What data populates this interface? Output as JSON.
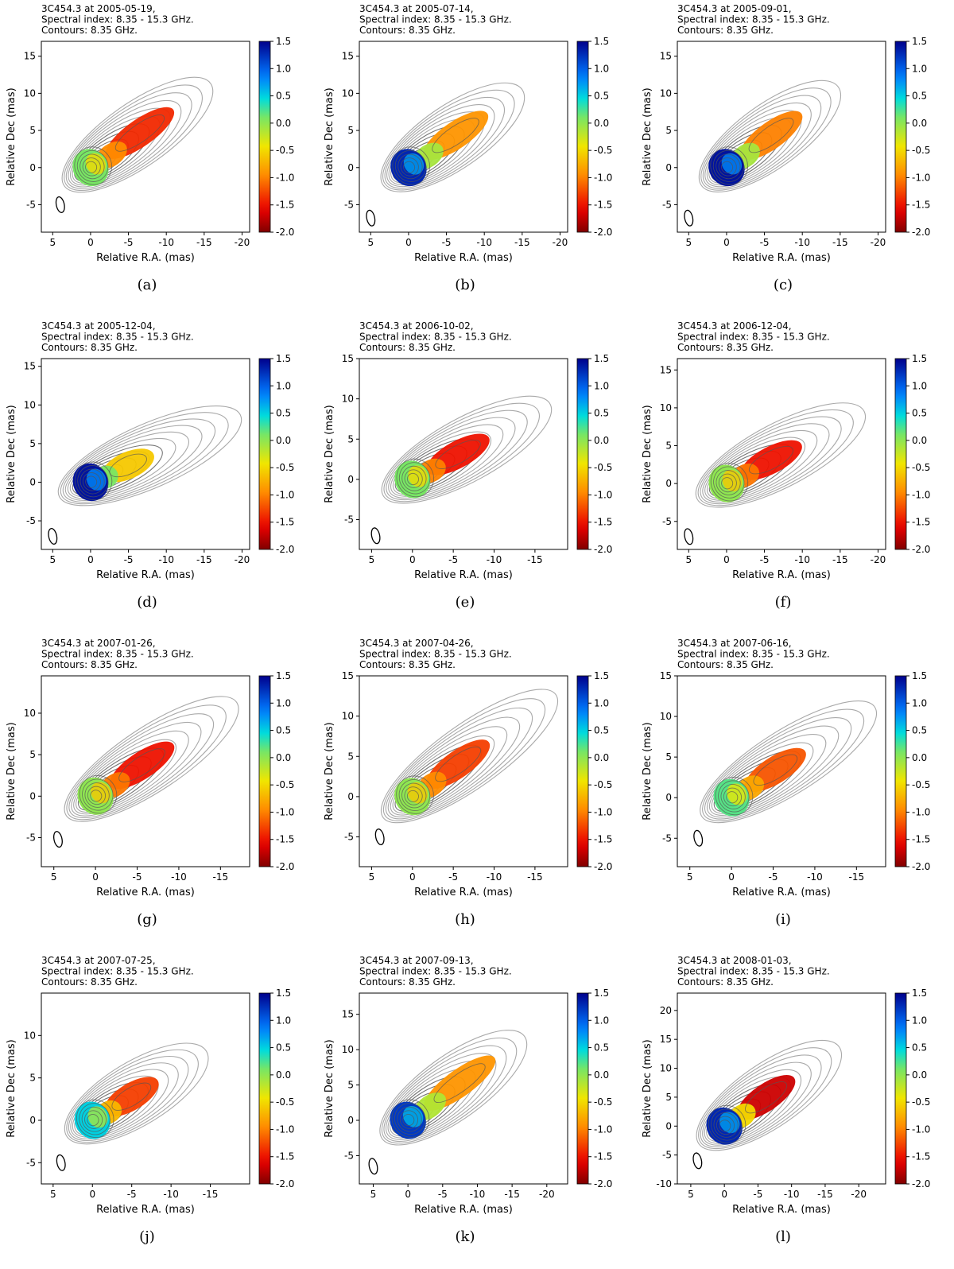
{
  "chart_data": [
    {
      "label": "(a)",
      "title": [
        "3C454.3 at 2005-05-19,",
        "Spectral index: 8.35 - 15.3 GHz.",
        "Contours: 8.35 GHz."
      ],
      "xlabel": "Relative R.A. (mas)",
      "ylabel": "Relative Dec (mas)",
      "xlim": [
        6.5,
        -21
      ],
      "ylim": [
        -8.7,
        17
      ],
      "xticks": [
        5,
        0,
        -5,
        -10,
        -15,
        -20
      ],
      "yticks": [
        -5,
        0,
        5,
        10,
        15
      ],
      "colorbar": {
        "ticks": [
          1.5,
          1.0,
          0.5,
          0.0,
          -0.5,
          -1.0,
          -1.5,
          -2.0
        ],
        "range": [
          -2.0,
          1.5
        ]
      },
      "core_index": 0.1,
      "jet_index": -1.4,
      "jet_end": [
        -10.5,
        7.5
      ],
      "contour_extent": [
        -15,
        10.5
      ],
      "beam": [
        4.0,
        -5.0
      ]
    },
    {
      "label": "(b)",
      "title": [
        "3C454.3 at 2005-07-14,",
        "Spectral index: 8.35 - 15.3 GHz.",
        "Contours: 8.35 GHz."
      ],
      "xlabel": "Relative R.A. (mas)",
      "ylabel": "Relative Dec (mas)",
      "xlim": [
        6.5,
        -21
      ],
      "ylim": [
        -8.7,
        17
      ],
      "xticks": [
        5,
        0,
        -5,
        -10,
        -15,
        -20
      ],
      "yticks": [
        -5,
        0,
        5,
        10,
        15
      ],
      "colorbar": {
        "ticks": [
          1.5,
          1.0,
          0.5,
          0.0,
          -0.5,
          -1.0,
          -1.5,
          -2.0
        ],
        "range": [
          -2.0,
          1.5
        ]
      },
      "core_index": 1.3,
      "jet_index": -0.9,
      "jet_end": [
        -10,
        7
      ],
      "contour_extent": [
        -14,
        12
      ],
      "beam": [
        5.0,
        -6.8
      ]
    },
    {
      "label": "(c)",
      "title": [
        "3C454.3 at 2005-09-01,",
        "Spectral index: 8.35 - 15.3 GHz.",
        "Contours: 8.35 GHz."
      ],
      "xlabel": "Relative R.A. (mas)",
      "ylabel": "Relative Dec (mas)",
      "xlim": [
        6.5,
        -21
      ],
      "ylim": [
        -8.7,
        17
      ],
      "xticks": [
        5,
        0,
        -5,
        -10,
        -15,
        -20
      ],
      "yticks": [
        -5,
        0,
        5,
        10,
        15
      ],
      "colorbar": {
        "ticks": [
          1.5,
          1.0,
          0.5,
          0.0,
          -0.5,
          -1.0,
          -1.5,
          -2.0
        ],
        "range": [
          -2.0,
          1.5
        ]
      },
      "core_index": 1.4,
      "jet_index": -1.0,
      "jet_end": [
        -9.5,
        7
      ],
      "contour_extent": [
        -14,
        11
      ],
      "beam": [
        5.0,
        -6.8
      ]
    },
    {
      "label": "(d)",
      "title": [
        "3C454.3 at 2005-12-04,",
        "Spectral index: 8.35 - 15.3 GHz.",
        "Contours: 8.35 GHz."
      ],
      "xlabel": "Relative R.A. (mas)",
      "ylabel": "Relative Dec (mas)",
      "xlim": [
        6.5,
        -21
      ],
      "ylim": [
        -8.7,
        16
      ],
      "xticks": [
        5,
        0,
        -5,
        -10,
        -15,
        -20
      ],
      "yticks": [
        -5,
        0,
        5,
        10,
        15
      ],
      "colorbar": {
        "ticks": [
          1.5,
          1.0,
          0.5,
          0.0,
          -0.5,
          -1.0,
          -1.5,
          -2.0
        ],
        "range": [
          -2.0,
          1.5
        ]
      },
      "core_index": 1.4,
      "jet_index": -0.6,
      "jet_end": [
        -8,
        3.5
      ],
      "contour_extent": [
        -17,
        9
      ],
      "beam": [
        5.0,
        -7.0
      ]
    },
    {
      "label": "(e)",
      "title": [
        "3C454.3 at 2006-10-02,",
        "Spectral index: 8.35 - 15.3 GHz.",
        "Contours: 8.35 GHz."
      ],
      "xlabel": "Relative R.A. (mas)",
      "ylabel": "Relative Dec (mas)",
      "xlim": [
        6.5,
        -19
      ],
      "ylim": [
        -8.7,
        15
      ],
      "xticks": [
        5,
        0,
        -5,
        -10,
        -15
      ],
      "yticks": [
        -5,
        0,
        5,
        10,
        15
      ],
      "colorbar": {
        "ticks": [
          1.5,
          1.0,
          0.5,
          0.0,
          -0.5,
          -1.0,
          -1.5,
          -2.0
        ],
        "range": [
          -2.0,
          1.5
        ]
      },
      "core_index": 0.1,
      "jet_index": -1.5,
      "jet_end": [
        -9,
        5
      ],
      "contour_extent": [
        -15,
        11
      ],
      "beam": [
        4.5,
        -7.0
      ]
    },
    {
      "label": "(f)",
      "title": [
        "3C454.3 at 2006-12-04,",
        "Spectral index: 8.35 - 15.3 GHz.",
        "Contours: 8.35 GHz."
      ],
      "xlabel": "Relative R.A. (mas)",
      "ylabel": "Relative Dec (mas)",
      "xlim": [
        6.5,
        -21
      ],
      "ylim": [
        -8.7,
        16.5
      ],
      "xticks": [
        5,
        0,
        -5,
        -10,
        -15,
        -20
      ],
      "yticks": [
        -5,
        0,
        5,
        10,
        15
      ],
      "colorbar": {
        "ticks": [
          1.5,
          1.0,
          0.5,
          0.0,
          -0.5,
          -1.0,
          -1.5,
          -2.0
        ],
        "range": [
          -2.0,
          1.5
        ]
      },
      "core_index": 0.0,
      "jet_index": -1.5,
      "jet_end": [
        -9.5,
        5
      ],
      "contour_extent": [
        -16,
        9
      ],
      "beam": [
        5.0,
        -7.0
      ]
    },
    {
      "label": "(g)",
      "title": [
        "3C454.3 at 2007-01-26,",
        "Spectral index: 8.35 - 15.3 GHz.",
        "Contours: 8.35 GHz."
      ],
      "xlabel": "Relative R.A. (mas)",
      "ylabel": "Relative Dec (mas)",
      "xlim": [
        6.5,
        -18.5
      ],
      "ylim": [
        -8.5,
        14.5
      ],
      "xticks": [
        5,
        0,
        -5,
        -10,
        -15
      ],
      "yticks": [
        -5,
        0,
        5,
        10
      ],
      "colorbar": {
        "ticks": [
          1.5,
          1.0,
          0.5,
          0.0,
          -0.5,
          -1.0,
          -1.5,
          -2.0
        ],
        "range": [
          -2.0,
          1.5
        ]
      },
      "core_index": 0.0,
      "jet_index": -1.5,
      "jet_end": [
        -9,
        6
      ],
      "contour_extent": [
        -16,
        10
      ],
      "beam": [
        4.5,
        -5.2
      ]
    },
    {
      "label": "(h)",
      "title": [
        "3C454.3 at 2007-04-26,",
        "Spectral index: 8.35 - 15.3 GHz.",
        "Contours: 8.35 GHz."
      ],
      "xlabel": "Relative R.A. (mas)",
      "ylabel": "Relative Dec (mas)",
      "xlim": [
        6.5,
        -19
      ],
      "ylim": [
        -8.7,
        15
      ],
      "xticks": [
        5,
        0,
        -5,
        -10,
        -15
      ],
      "yticks": [
        -5,
        0,
        5,
        10,
        15
      ],
      "colorbar": {
        "ticks": [
          1.5,
          1.0,
          0.5,
          0.0,
          -0.5,
          -1.0,
          -1.5,
          -2.0
        ],
        "range": [
          -2.0,
          1.5
        ]
      },
      "core_index": 0.0,
      "jet_index": -1.3,
      "jet_end": [
        -9,
        6.5
      ],
      "contour_extent": [
        -17,
        11
      ],
      "beam": [
        4.0,
        -5.0
      ]
    },
    {
      "label": "(i)",
      "title": [
        "3C454.3 at 2007-06-16,",
        "Spectral index: 8.35 - 15.3 GHz.",
        "Contours: 8.35 GHz."
      ],
      "xlabel": "Relative R.A. (mas)",
      "ylabel": "Relative Dec (mas)",
      "xlim": [
        6.5,
        -18.5
      ],
      "ylim": [
        -8.5,
        15
      ],
      "xticks": [
        5,
        0,
        -5,
        -10,
        -15
      ],
      "yticks": [
        -5,
        0,
        5,
        10,
        15
      ],
      "colorbar": {
        "ticks": [
          1.5,
          1.0,
          0.5,
          0.0,
          -0.5,
          -1.0,
          -1.5,
          -2.0
        ],
        "range": [
          -2.0,
          1.5
        ]
      },
      "core_index": 0.2,
      "jet_index": -1.2,
      "jet_end": [
        -8.5,
        5.5
      ],
      "contour_extent": [
        -16,
        11
      ],
      "beam": [
        4.0,
        -5.0
      ]
    },
    {
      "label": "(j)",
      "title": [
        "3C454.3 at 2007-07-25,",
        "Spectral index: 8.35 - 15.3 GHz.",
        "Contours: 8.35 GHz."
      ],
      "xlabel": "Relative R.A. (mas)",
      "ylabel": "Relative Dec (mas)",
      "xlim": [
        6.5,
        -20
      ],
      "ylim": [
        -7.5,
        15
      ],
      "xticks": [
        5,
        0,
        -5,
        -10,
        -15
      ],
      "yticks": [
        -5,
        0,
        5,
        10
      ],
      "colorbar": {
        "ticks": [
          1.5,
          1.0,
          0.5,
          0.0,
          -0.5,
          -1.0,
          -1.5,
          -2.0
        ],
        "range": [
          -2.0,
          1.5
        ]
      },
      "core_index": 0.5,
      "jet_index": -1.3,
      "jet_end": [
        -8,
        4.5
      ],
      "contour_extent": [
        -13,
        8
      ],
      "beam": [
        4.0,
        -5.0
      ]
    },
    {
      "label": "(k)",
      "title": [
        "3C454.3 at 2007-09-13,",
        "Spectral index: 8.35 - 15.3 GHz.",
        "Contours: 8.35 GHz."
      ],
      "xlabel": "Relative R.A. (mas)",
      "ylabel": "Relative Dec (mas)",
      "xlim": [
        7,
        -23
      ],
      "ylim": [
        -9,
        18
      ],
      "xticks": [
        5,
        0,
        -5,
        -10,
        -15,
        -20
      ],
      "yticks": [
        -5,
        0,
        5,
        10,
        15
      ],
      "colorbar": {
        "ticks": [
          1.5,
          1.0,
          0.5,
          0.0,
          -0.5,
          -1.0,
          -1.5,
          -2.0
        ],
        "range": [
          -2.0,
          1.5
        ]
      },
      "core_index": 1.2,
      "jet_index": -0.9,
      "jet_end": [
        -12,
        8.5
      ],
      "contour_extent": [
        -16,
        11
      ],
      "beam": [
        5.0,
        -6.5
      ]
    },
    {
      "label": "(l)",
      "title": [
        "3C454.3 at 2008-01-03,",
        "Spectral index: 8.35 - 15.3 GHz.",
        "Contours: 8.35 GHz."
      ],
      "xlabel": "Relative R.A. (mas)",
      "ylabel": "Relative Dec (mas)",
      "xlim": [
        7,
        -24
      ],
      "ylim": [
        -10,
        23
      ],
      "xticks": [
        5,
        0,
        -5,
        -10,
        -15,
        -20
      ],
      "yticks": [
        -10,
        -5,
        0,
        5,
        10,
        15,
        20
      ],
      "colorbar": {
        "ticks": [
          1.5,
          1.0,
          0.5,
          0.0,
          -0.5,
          -1.0,
          -1.5,
          -2.0
        ],
        "range": [
          -2.0,
          1.5
        ]
      },
      "core_index": 1.3,
      "jet_index": -1.7,
      "jet_end": [
        -10,
        8
      ],
      "contour_extent": [
        -16,
        11
      ],
      "beam": [
        4.0,
        -6.0
      ]
    }
  ]
}
